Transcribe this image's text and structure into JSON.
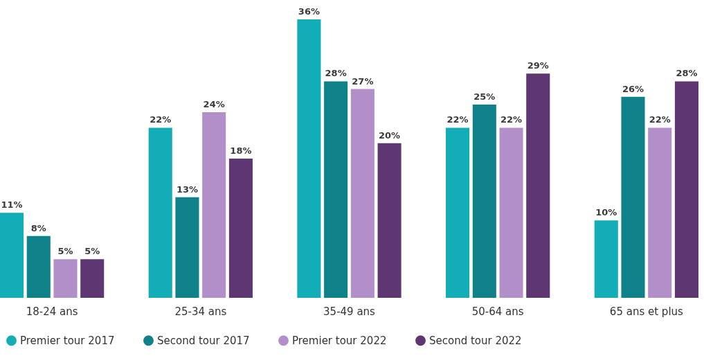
{
  "chart_data": {
    "type": "bar",
    "categories": [
      "18-24 ans",
      "25-34 ans",
      "35-49 ans",
      "50-64 ans",
      "65 ans et plus"
    ],
    "series": [
      {
        "name": "Premier tour 2017",
        "color": "#12adb6",
        "values": [
          11,
          22,
          36,
          22,
          10
        ],
        "value_labels": [
          "11%",
          "22%",
          "36%",
          "22%",
          "10%"
        ]
      },
      {
        "name": "Second tour 2017",
        "color": "#0f8189",
        "values": [
          8,
          13,
          28,
          25,
          26
        ],
        "value_labels": [
          "8%",
          "13%",
          "28%",
          "25%",
          "26%"
        ]
      },
      {
        "name": "Premier tour 2022",
        "color": "#b38fca",
        "values": [
          5,
          24,
          27,
          22,
          22
        ],
        "value_labels": [
          "5%",
          "24%",
          "27%",
          "22%",
          "22%"
        ]
      },
      {
        "name": "Second tour 2022",
        "color": "#5e3672",
        "values": [
          5,
          18,
          20,
          29,
          28
        ],
        "value_labels": [
          "5%",
          "18%",
          "20%",
          "29%",
          "28%"
        ]
      }
    ],
    "legend": "bottom",
    "grid": false
  }
}
